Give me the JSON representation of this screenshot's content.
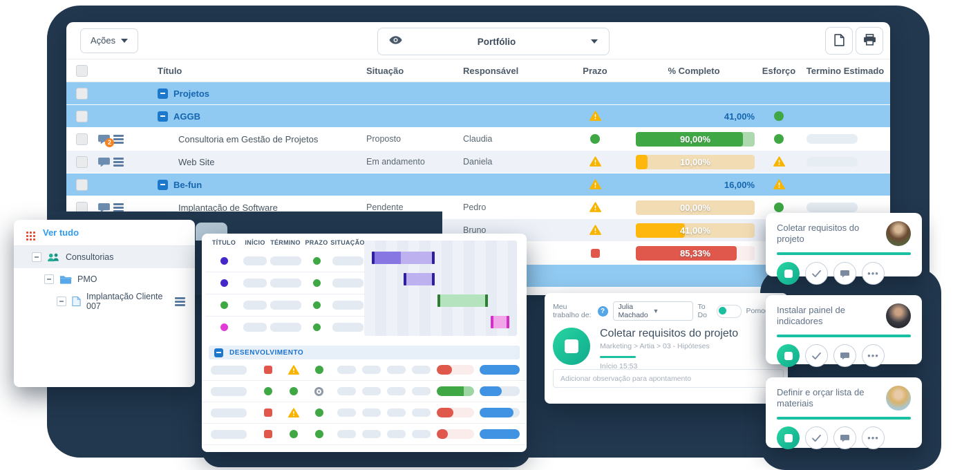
{
  "colors": {
    "backdrop": "#22384e",
    "accent_teal": "#19bf9f",
    "link_blue": "#1666b0",
    "group_row_blue": "#90c9f1",
    "warning_yellow": "#f7b500",
    "success_green": "#3fa845",
    "danger_red": "#e0574c",
    "bar_orange": "#fdb70d",
    "bar_blue": "#3f93e2"
  },
  "main_window": {
    "toolbar": {
      "actions_button": "Ações",
      "view_selector": "Portfólio"
    },
    "table": {
      "headers": {
        "titulo": "Título",
        "situacao": "Situação",
        "responsavel": "Responsável",
        "prazo": "Prazo",
        "completo": "% Completo",
        "esforco": "Esforço",
        "termino": "Termino Estimado"
      },
      "rows": [
        {
          "type": "group",
          "title": "Projetos"
        },
        {
          "type": "group",
          "title": "AGGB",
          "prazo": "warning",
          "completo": "41,00%",
          "esforco": "green"
        },
        {
          "type": "task",
          "title": "Consultoria em Gestão de Projetos",
          "situacao": "Proposto",
          "responsavel": "Claudia",
          "prazo": "green",
          "bar_value": "90,00%",
          "bar_pct": 90,
          "bar_color": "green",
          "esforco": "green",
          "comment_badge": "2",
          "termino_placeholder": true
        },
        {
          "type": "task",
          "title": "Web Site",
          "situacao": "Em andamento",
          "responsavel": "Daniela",
          "alt": true,
          "prazo": "warning",
          "bar_value": "10,00%",
          "bar_pct": 10,
          "bar_color": "orange",
          "esforco": "warning",
          "termino_placeholder": true
        },
        {
          "type": "group",
          "title": "Be-fun",
          "prazo": "warning",
          "completo": "16,00%",
          "esforco": "warning"
        },
        {
          "type": "task",
          "title": "Implantação de Software",
          "situacao": "Pendente",
          "responsavel": "Pedro",
          "prazo": "warning",
          "bar_value": "00,00%",
          "bar_pct": 0,
          "bar_color": "orange",
          "esforco": "green",
          "termino_placeholder": true
        },
        {
          "type": "task",
          "title": "",
          "situacao": "",
          "responsavel": "Bruno",
          "alt": true,
          "prazo": "warning",
          "bar_value": "41,00%",
          "bar_pct": 41,
          "bar_color": "orange"
        },
        {
          "type": "task",
          "title": "",
          "situacao": "",
          "responsavel": "",
          "prazo": "red",
          "bar_value": "85,33%",
          "bar_pct": 85,
          "bar_color": "red"
        },
        {
          "type": "group",
          "title": ""
        }
      ]
    }
  },
  "tree_window": {
    "ver_tudo": "Ver tudo",
    "items": [
      {
        "label": "Consultorias",
        "icon": "people",
        "indent": 0,
        "selected": true
      },
      {
        "label": "PMO",
        "icon": "folder",
        "indent": 1
      },
      {
        "label": "Implantação Cliente 007",
        "icon": "file",
        "indent": 2,
        "menu": true
      }
    ]
  },
  "gantt_window": {
    "columns": [
      "TÍTULO",
      "INÍCIO",
      "TÉRMINO",
      "PRAZO",
      "SITUAÇÃO"
    ],
    "rows": [
      {
        "title_dot": "#4527c9",
        "prazo_dot": "#3fa845",
        "bar": {
          "left_pct": 5,
          "width_pct": 41,
          "style": "purple-split"
        }
      },
      {
        "title_dot": "#4527c9",
        "prazo_dot": "#3fa845",
        "bar": {
          "left_pct": 26,
          "width_pct": 20,
          "style": "purple-light"
        }
      },
      {
        "title_dot": "#3fa845",
        "prazo_dot": "#3fa845",
        "bar": {
          "left_pct": 48,
          "width_pct": 33,
          "style": "green-light"
        }
      },
      {
        "title_dot": "#e23ad6",
        "prazo_dot": "#3fa845",
        "bar": {
          "left_pct": 83,
          "width_pct": 12,
          "style": "pink-light"
        }
      }
    ],
    "section_label": "DESENVOLVIMENTO",
    "dev_rows": [
      {
        "status_icons": [
          "red-square",
          "warning",
          "green-dot"
        ],
        "progress": {
          "color": "red",
          "pct": 40
        },
        "bar2_pct": 100
      },
      {
        "status_icons": [
          "green-dot",
          "green-dot",
          "target"
        ],
        "progress": {
          "color": "green",
          "pct": 100
        },
        "bar2_pct": 55
      },
      {
        "status_icons": [
          "red-square",
          "warning",
          "green-dot"
        ],
        "progress": {
          "color": "red",
          "pct": 45
        },
        "bar2_pct": 85
      },
      {
        "status_icons": [
          "red-square",
          "green-dot",
          "green-dot"
        ],
        "progress": {
          "color": "red",
          "pct": 30
        },
        "bar2_pct": 100
      }
    ]
  },
  "work_panel": {
    "label": "Meu trabalho de:",
    "user": "Julia Machado",
    "todo": "To Do",
    "pomodoro": "Pomodoro",
    "task_title": "Coletar requisitos do projeto",
    "breadcrumb": "Marketing > Artia > 03 - Hipóteses",
    "start": "Início 15:53",
    "note_placeholder": "Adicionar observação para apontamento"
  },
  "task_cards": [
    {
      "title": "Coletar requisitos do projeto",
      "avatar": "woman"
    },
    {
      "title": "Instalar painel de indicadores",
      "avatar": "man-dark"
    },
    {
      "title": "Definir e orçar lista de materiais",
      "avatar": "man-blond"
    }
  ]
}
